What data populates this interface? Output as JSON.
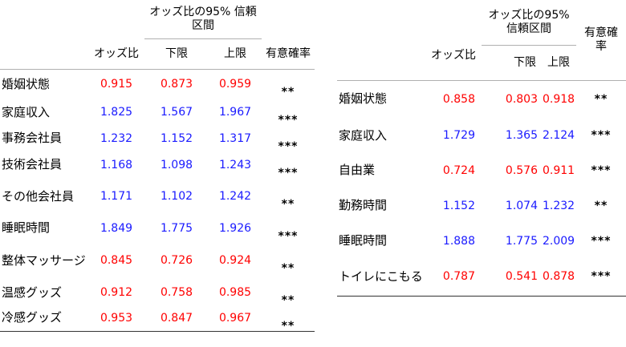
{
  "table1": {
    "headers": {
      "odds": "オッズ比",
      "ci": "オッズ比の95% 信頼区間",
      "lower": "下限",
      "upper": "上限",
      "sig": "有意確率"
    },
    "rows": [
      {
        "label": "婚姻状態",
        "odds": "0.915",
        "lower": "0.873",
        "upper": "0.959",
        "sig": "**",
        "color": "#ff0000"
      },
      {
        "label": "家庭収入",
        "odds": "1.825",
        "lower": "1.567",
        "upper": "1.967",
        "sig": "***",
        "color": "#1a1aff"
      },
      {
        "label": "事務会社員",
        "odds": "1.232",
        "lower": "1.152",
        "upper": "1.317",
        "sig": "***",
        "color": "#1a1aff"
      },
      {
        "label": "技術会社員",
        "odds": "1.168",
        "lower": "1.098",
        "upper": "1.243",
        "sig": "***",
        "color": "#1a1aff"
      },
      {
        "label": "その他会社員",
        "odds": "1.171",
        "lower": "1.102",
        "upper": "1.242",
        "sig": "**",
        "color": "#1a1aff"
      },
      {
        "label": "睡眠時間",
        "odds": "1.849",
        "lower": "1.775",
        "upper": "1.926",
        "sig": "***",
        "color": "#1a1aff"
      },
      {
        "label": "整体マッサージ",
        "odds": "0.845",
        "lower": "0.726",
        "upper": "0.924",
        "sig": "**",
        "color": "#ff0000"
      },
      {
        "label": "温感グッズ",
        "odds": "0.912",
        "lower": "0.758",
        "upper": "0.985",
        "sig": "**",
        "color": "#ff0000"
      },
      {
        "label": "冷感グッズ",
        "odds": "0.953",
        "lower": "0.847",
        "upper": "0.967",
        "sig": "**",
        "color": "#ff0000"
      }
    ]
  },
  "table2": {
    "headers": {
      "odds": "オッズ比",
      "ci": "オッズ比の95% 信頼区間",
      "lower": "下限",
      "upper": "上限",
      "sig": "有意確率"
    },
    "rows": [
      {
        "label": "婚姻状態",
        "odds": "0.858",
        "lower": "0.803",
        "upper": "0.918",
        "sig": "**",
        "color": "#ff0000"
      },
      {
        "label": "家庭収入",
        "odds": "1.729",
        "lower": "1.365",
        "upper": "2.124",
        "sig": "***",
        "color": "#1a1aff"
      },
      {
        "label": "自由業",
        "odds": "0.724",
        "lower": "0.576",
        "upper": "0.911",
        "sig": "***",
        "color": "#ff0000"
      },
      {
        "label": "勤務時間",
        "odds": "1.152",
        "lower": "1.074",
        "upper": "1.232",
        "sig": "**",
        "color": "#1a1aff"
      },
      {
        "label": "睡眠時間",
        "odds": "1.888",
        "lower": "1.775",
        "upper": "2.009",
        "sig": "***",
        "color": "#1a1aff"
      },
      {
        "label": "トイレにこもる",
        "odds": "0.787",
        "lower": "0.541",
        "upper": "0.878",
        "sig": "***",
        "color": "#ff0000"
      }
    ]
  }
}
